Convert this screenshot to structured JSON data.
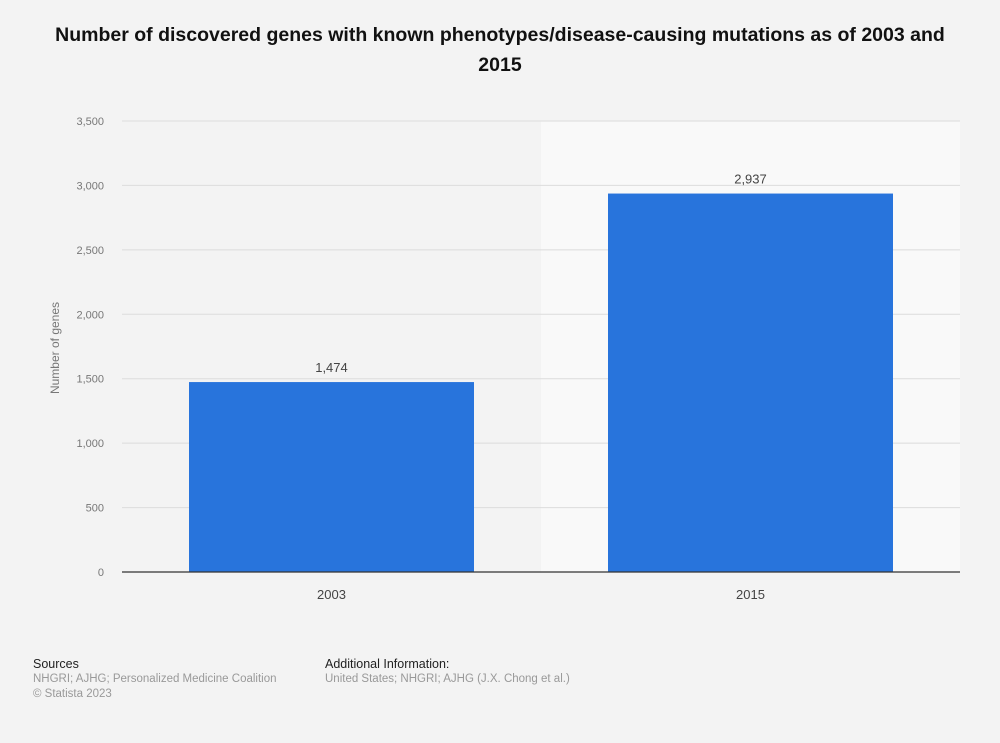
{
  "chart_data": {
    "type": "bar",
    "title": "Number of discovered genes with known phenotypes/disease-causing mutations as of 2003 and 2015",
    "ylabel": "Number of genes",
    "xlabel": "",
    "categories": [
      "2003",
      "2015"
    ],
    "values": [
      1474,
      2937
    ],
    "value_labels": [
      "1,474",
      "2,937"
    ],
    "ylim": [
      0,
      3500
    ],
    "yticks": [
      0,
      500,
      1000,
      1500,
      2000,
      2500,
      3000,
      3500
    ],
    "ytick_labels": [
      "0",
      "500",
      "1,000",
      "1,500",
      "2,000",
      "2,500",
      "3,000",
      "3,500"
    ],
    "grid": true,
    "bar_color": "#2874dc",
    "highlighted_category": "2015"
  },
  "footer": {
    "sources_heading": "Sources",
    "sources_text": "NHGRI; AJHG; Personalized Medicine Coalition",
    "copyright": "© Statista 2023",
    "additional_heading": "Additional Information:",
    "additional_text": "United States; NHGRI; AJHG (J.X. Chong et al.)"
  }
}
